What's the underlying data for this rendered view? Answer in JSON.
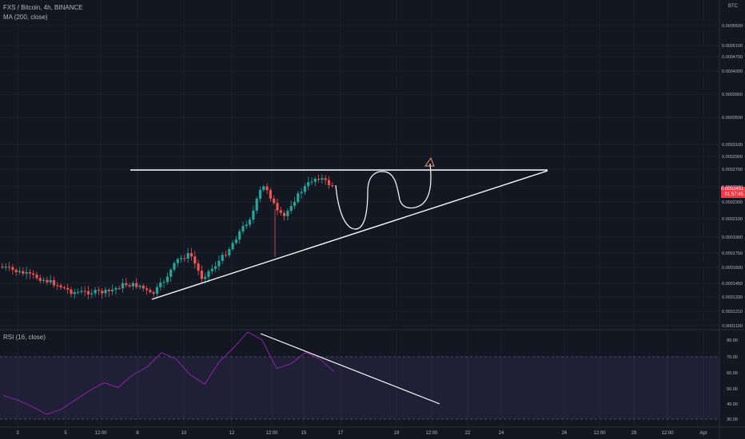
{
  "legend": {
    "symbol": "FXS / Bitcoin, 4h, BINANCE",
    "ma": "MA (200, close)",
    "rsi": "RSI (16, close)"
  },
  "price_scale": {
    "currency": "BTC",
    "last_price": "0.0002451",
    "countdown": "01:57:45"
  },
  "colors": {
    "background": "#131722",
    "up": "#26a69a",
    "down": "#ef5350",
    "rsi_line": "#8e24aa",
    "rsi_band": "#7e57c2",
    "drawing": "#ffffff",
    "badge": "#f23645"
  },
  "chart_data": [
    {
      "type": "candlestick",
      "title": "FXS / Bitcoin, 4h, BINANCE",
      "y_ticks": [
        "0.0005500",
        "0.0005100",
        "0.0004700",
        "0.0004300",
        "0.0003900",
        "0.0003500",
        "0.0003100",
        "0.0002900",
        "0.0002700",
        "0.0002500",
        "0.0002300",
        "0.0002100",
        "0.0001900",
        "0.0001750",
        "0.0001600",
        "0.0001450",
        "0.0001330",
        "0.0001210",
        "0.0001100"
      ],
      "x_ticks": [
        "3",
        "5",
        "12:00",
        "8",
        "10",
        "12",
        "12:00",
        "15",
        "17",
        "19",
        "12:00",
        "22",
        "24",
        "26",
        "12:00",
        "29",
        "12:00",
        "Apr"
      ],
      "grid": true,
      "legend_position": "top-left",
      "approx_series": [
        {
          "name": "close",
          "points": [
            {
              "x": "3",
              "y": 0.000158
            },
            {
              "x": "5",
              "y": 0.000133
            },
            {
              "x": "8",
              "y": 0.000132
            },
            {
              "x": "10",
              "y": 0.00015
            },
            {
              "x": "12",
              "y": 0.0002
            },
            {
              "x": "12:00",
              "y": 0.00027
            },
            {
              "x": "12:00",
              "y": 0.000225
            },
            {
              "x": "15",
              "y": 0.000275
            },
            {
              "x": "15",
              "y": 0.000245
            }
          ]
        }
      ]
    },
    {
      "type": "line",
      "title": "RSI (16, close)",
      "y_ticks": [
        "80.00",
        "70.00",
        "60.00",
        "50.00",
        "40.00",
        "30.00"
      ],
      "bands": [
        30,
        70
      ],
      "values": [
        45,
        42,
        38,
        33,
        36,
        42,
        48,
        53,
        50,
        58,
        63,
        72,
        68,
        58,
        52,
        66,
        75,
        85,
        80,
        62,
        65,
        72,
        68,
        60
      ]
    }
  ]
}
